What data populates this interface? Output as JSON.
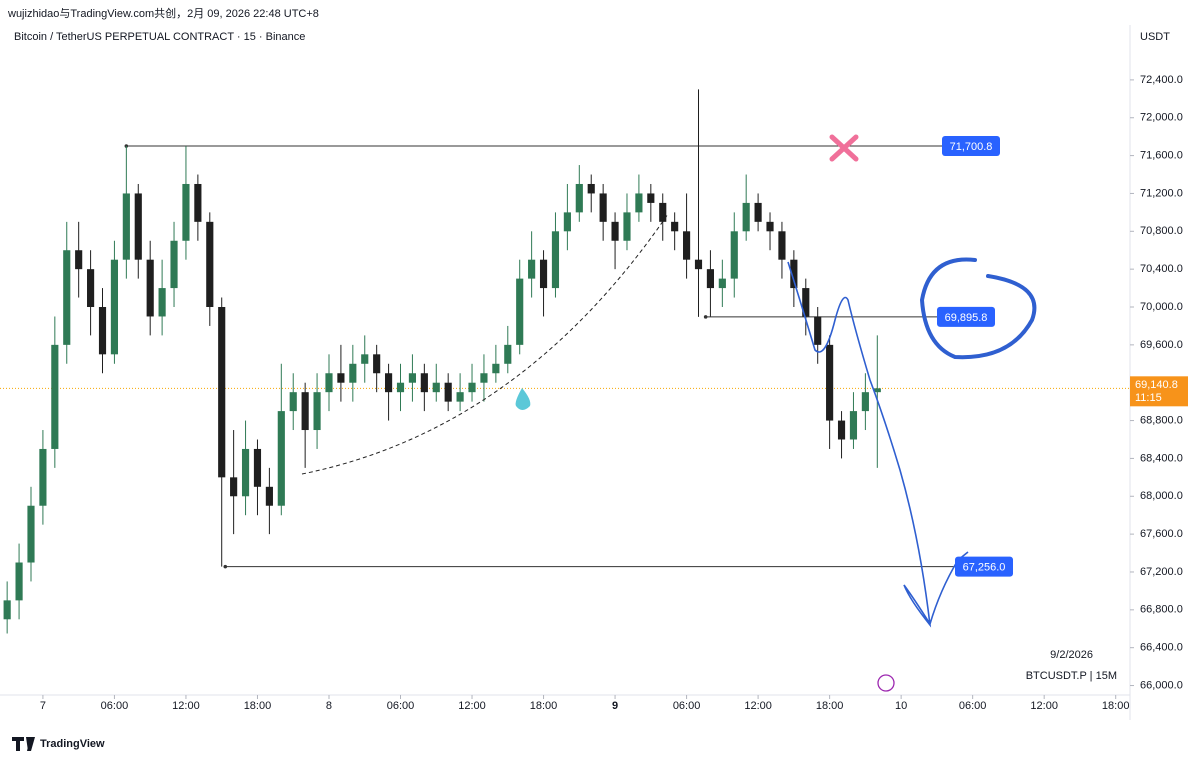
{
  "header": {
    "credit": "wujizhidao与TradingView.com共创，2月 09, 2026 22:48 UTC+8",
    "logo": "TradingView"
  },
  "chart_data": {
    "type": "candlestick",
    "title": "Bitcoin / TetherUS PERPETUAL CONTRACT · 15 · Binance",
    "y_axis_label": "USDT",
    "symbol_date": "9/2/2026",
    "symbol_info": "BTCUSDT.P | 15M",
    "up_color": "#2f7a55",
    "down_color": "#1f1f1f",
    "x": [
      -3,
      -2,
      -1,
      0,
      1,
      2,
      3,
      4,
      5,
      6,
      7,
      8,
      9,
      10,
      11,
      12,
      13,
      14,
      15,
      16,
      17,
      18,
      19,
      20,
      21,
      22,
      23,
      24,
      25,
      26,
      27,
      28,
      29,
      30,
      31,
      32,
      33,
      34,
      35,
      36,
      37,
      38,
      39,
      40,
      41,
      42,
      43,
      44,
      45,
      46,
      47,
      48,
      49,
      50,
      51,
      52,
      53,
      54,
      55,
      56,
      57,
      58,
      59,
      60,
      61,
      62,
      63,
      64,
      65,
      66,
      67,
      68,
      69,
      70
    ],
    "open": [
      66700,
      66900,
      67300,
      67900,
      68500,
      69600,
      70600,
      70400,
      70000,
      69500,
      70500,
      71200,
      70500,
      69900,
      70200,
      70700,
      71300,
      70900,
      70000,
      68200,
      68000,
      68500,
      68100,
      67900,
      68900,
      69100,
      68700,
      69100,
      69300,
      69200,
      69400,
      69500,
      69300,
      69100,
      69200,
      69300,
      69100,
      69200,
      69000,
      69100,
      69200,
      69300,
      69400,
      69600,
      70300,
      70500,
      70200,
      70800,
      71000,
      71300,
      71200,
      70900,
      70700,
      71000,
      71200,
      71100,
      70900,
      70800,
      70500,
      70400,
      70200,
      70300,
      70800,
      71100,
      70900,
      70800,
      70500,
      70200,
      69900,
      69600,
      68800,
      68600,
      68900,
      69100
    ],
    "high": [
      67100,
      67500,
      68100,
      68700,
      69900,
      70900,
      70900,
      70600,
      70200,
      70700,
      71700.8,
      71300,
      70700,
      70500,
      70900,
      71700,
      71400,
      71000,
      70100,
      68700,
      68800,
      68600,
      68300,
      69400,
      69300,
      69200,
      69300,
      69500,
      69600,
      69600,
      69700,
      69600,
      69400,
      69400,
      69500,
      69400,
      69400,
      69300,
      69300,
      69400,
      69500,
      69600,
      69800,
      70500,
      70800,
      70600,
      71000,
      71300,
      71500,
      71400,
      71300,
      71000,
      71200,
      71400,
      71300,
      71200,
      71000,
      71200,
      72300,
      70600,
      70500,
      71000,
      71400,
      71200,
      71000,
      70900,
      70600,
      70300,
      70000,
      69700,
      68900,
      69100,
      69300,
      69700
    ],
    "low": [
      66550,
      66700,
      67100,
      67700,
      68300,
      69400,
      70100,
      69700,
      69300,
      69400,
      70300,
      70300,
      69700,
      69700,
      70000,
      70500,
      70700,
      69800,
      67256,
      67600,
      67800,
      67800,
      67600,
      67800,
      68700,
      68300,
      68500,
      68900,
      69000,
      69000,
      69200,
      69100,
      68800,
      68900,
      69000,
      68900,
      69000,
      68900,
      68900,
      69000,
      69000,
      69200,
      69300,
      69500,
      70100,
      69900,
      70100,
      70600,
      70900,
      71000,
      70700,
      70400,
      70600,
      70900,
      70900,
      70700,
      70600,
      70300,
      69895.8,
      69900,
      70000,
      70100,
      70700,
      70800,
      70600,
      70300,
      70000,
      69700,
      69400,
      68500,
      68400,
      68500,
      68700,
      68300
    ],
    "close": [
      66900,
      67300,
      67900,
      68500,
      69600,
      70600,
      70400,
      70000,
      69500,
      70500,
      71200,
      70500,
      69900,
      70200,
      70700,
      71300,
      70900,
      70000,
      68200,
      68000,
      68500,
      68100,
      67900,
      68900,
      69100,
      68700,
      69100,
      69300,
      69200,
      69400,
      69500,
      69300,
      69100,
      69200,
      69300,
      69100,
      69200,
      69000,
      69100,
      69200,
      69300,
      69400,
      69600,
      70300,
      70500,
      70200,
      70800,
      71000,
      71300,
      71200,
      70900,
      70700,
      71000,
      71200,
      71100,
      70900,
      70800,
      70500,
      70400,
      70200,
      70300,
      70800,
      71100,
      70900,
      70800,
      70500,
      70200,
      69900,
      69600,
      68800,
      68600,
      68900,
      69100,
      69140.8
    ],
    "last_price": {
      "value": 69140.8,
      "label": "69,140.8"
    },
    "countdown": "11:15",
    "levels": [
      {
        "value": 71700.8,
        "label": "71,700.8",
        "x_start": 7
      },
      {
        "value": 69895.8,
        "label": "69,895.8",
        "x_start": 55.6
      },
      {
        "value": 67256.0,
        "label": "67,256.0",
        "x_start": 15.3
      }
    ],
    "xlim": [
      -3.6,
      91.2
    ],
    "xticks": [
      {
        "value": 0,
        "label": "7"
      },
      {
        "value": 6,
        "label": "06:00"
      },
      {
        "value": 12,
        "label": "12:00"
      },
      {
        "value": 18,
        "label": "18:00"
      },
      {
        "value": 24,
        "label": "8"
      },
      {
        "value": 30,
        "label": "06:00"
      },
      {
        "value": 36,
        "label": "12:00"
      },
      {
        "value": 42,
        "label": "18:00"
      },
      {
        "value": 48,
        "label": "9"
      },
      {
        "value": 54,
        "label": "06:00"
      },
      {
        "value": 60,
        "label": "12:00"
      },
      {
        "value": 66,
        "label": "18:00"
      },
      {
        "value": 72,
        "label": "10"
      },
      {
        "value": 78,
        "label": "06:00"
      },
      {
        "value": 84,
        "label": "12:00"
      },
      {
        "value": 90,
        "label": "18:00"
      }
    ],
    "ylim": [
      65900,
      72980
    ],
    "yticks": [
      {
        "value": 66000,
        "label": "66,000.0"
      },
      {
        "value": 66400,
        "label": "66,400.0"
      },
      {
        "value": 66800,
        "label": "66,800.0"
      },
      {
        "value": 67200,
        "label": "67,200.0"
      },
      {
        "value": 67600,
        "label": "67,600.0"
      },
      {
        "value": 68000,
        "label": "68,000.0"
      },
      {
        "value": 68400,
        "label": "68,400.0"
      },
      {
        "value": 68800,
        "label": "68,800.0"
      },
      {
        "value": 69200,
        "label": "69,200.0"
      },
      {
        "value": 69600,
        "label": "69,600.0"
      },
      {
        "value": 70000,
        "label": "70,000.0"
      },
      {
        "value": 70400,
        "label": "70,400.0"
      },
      {
        "value": 70800,
        "label": "70,800.0"
      },
      {
        "value": 71200,
        "label": "71,200.0"
      },
      {
        "value": 71600,
        "label": "71,600.0"
      },
      {
        "value": 72000,
        "label": "72,000.0"
      },
      {
        "value": 72400,
        "label": "72,400.0"
      }
    ]
  }
}
